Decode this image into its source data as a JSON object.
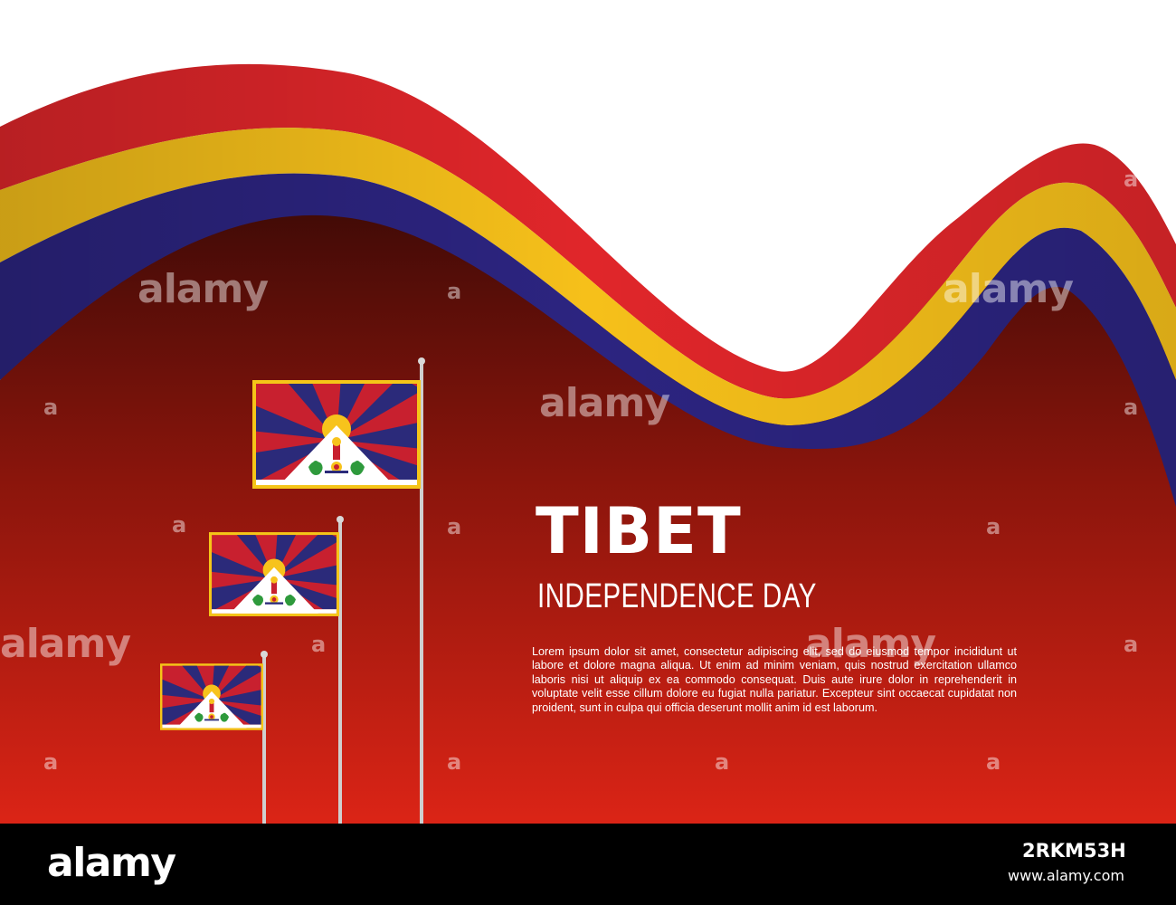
{
  "poster": {
    "title": "TIBET",
    "subtitle": "INDEPENDENCE DAY",
    "body": "Lorem ipsum dolor sit amet, consectetur adipiscing elit, sed do eiusmod tempor incididunt ut labore et dolore magna aliqua. Ut enim ad minim veniam, quis nostrud exercitation ullamco laboris nisi ut aliquip ex ea commodo consequat. Duis aute irure dolor in reprehenderit in voluptate velit esse cillum dolore eu fugiat nulla pariatur. Excepteur sint occaecat cupidatat non proident, sunt in culpa qui officia deserunt mollit anim id est laborum."
  },
  "watermark": {
    "text": "alamy",
    "short": "a"
  },
  "footer": {
    "logo": "alamy",
    "image_id": "2RKM53H",
    "url": "www.alamy.com"
  },
  "colors": {
    "ribbon_red": "#e2262b",
    "ribbon_yellow": "#f9c21b",
    "ribbon_blue": "#2d2580",
    "bg_dark": "#4a0d08",
    "bg_light": "#d42316",
    "pole": "#cfcfcf"
  },
  "icons": {
    "flag": "tibetan-snow-lion-flag-icon",
    "pole": "flagpole-icon"
  }
}
